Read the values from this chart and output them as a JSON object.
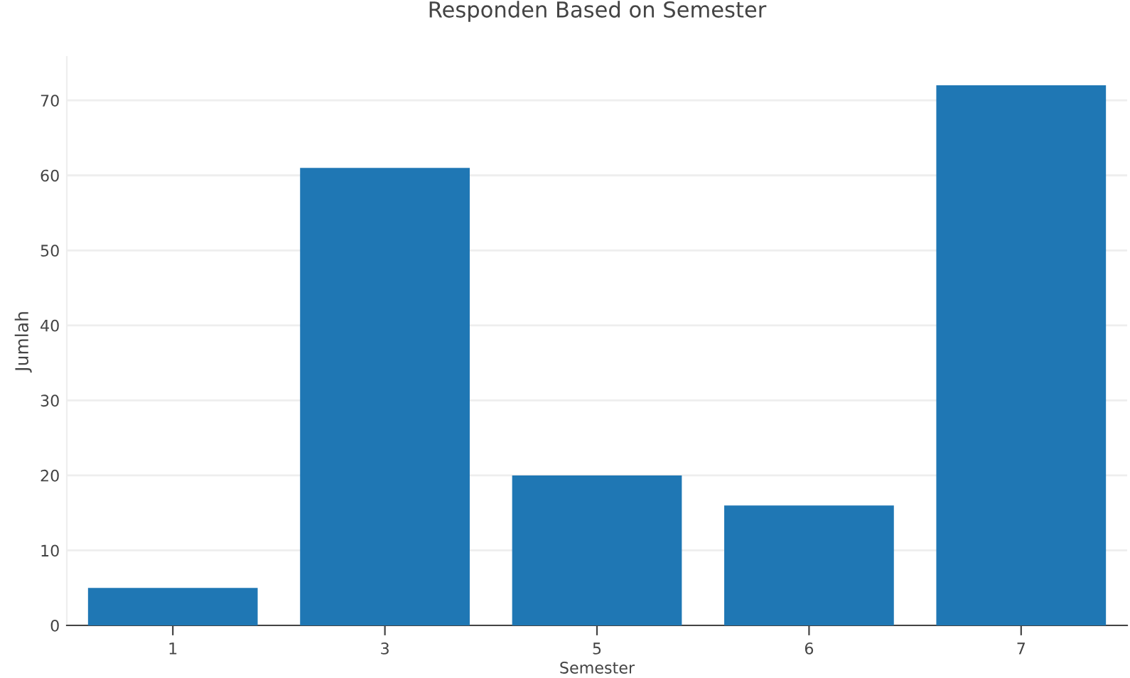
{
  "chart_data": {
    "type": "bar",
    "title": "Responden Based on Semester",
    "xlabel": "Semester",
    "ylabel": "Jumlah",
    "categories": [
      "1",
      "3",
      "5",
      "6",
      "7"
    ],
    "values": [
      5,
      61,
      20,
      16,
      72
    ],
    "color": "#1f77b4",
    "ylim": [
      0,
      75.8
    ],
    "yticks": [
      0,
      10,
      20,
      30,
      40,
      50,
      60,
      70
    ],
    "grid": "y",
    "legend": false
  }
}
